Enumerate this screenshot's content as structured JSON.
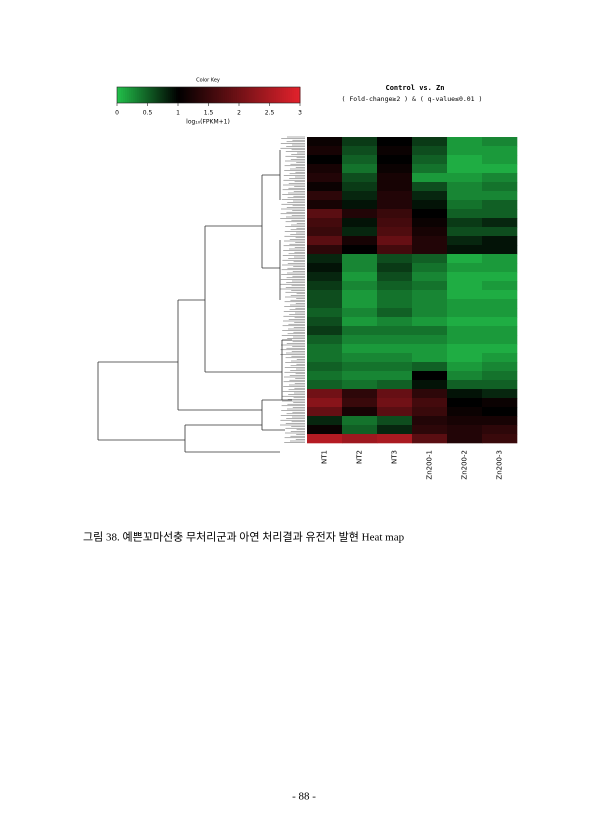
{
  "chart_data": {
    "type": "heatmap",
    "title": "Control vs. Zn",
    "subtitle": "( Fold-change≥2 ) & ( q-value≤0.01 )",
    "colorbar_title": "Color Key",
    "colorbar_label": "log₁₀(FPKM+1)",
    "colors": [
      "#22c04a",
      "#000000",
      "#e2222c"
    ],
    "clim": [
      0,
      3
    ],
    "color_mid": 1,
    "cticks": [
      0,
      0.5,
      1,
      1.5,
      2,
      2.5,
      3
    ],
    "categories": [
      "NT1",
      "NT2",
      "NT3",
      "Zn200-1",
      "Zn200-2",
      "Zn200-3"
    ],
    "values": [
      [
        1.1,
        0.7,
        1.0,
        0.7,
        0.2,
        0.3
      ],
      [
        1.2,
        0.6,
        1.1,
        0.6,
        0.2,
        0.2
      ],
      [
        1.0,
        0.5,
        1.0,
        0.5,
        0.1,
        0.2
      ],
      [
        1.2,
        0.4,
        1.1,
        0.4,
        0.1,
        0.1
      ],
      [
        1.3,
        0.6,
        1.2,
        0.2,
        0.2,
        0.3
      ],
      [
        1.1,
        0.7,
        1.2,
        0.6,
        0.3,
        0.4
      ],
      [
        1.4,
        0.8,
        1.3,
        0.8,
        0.3,
        0.3
      ],
      [
        1.2,
        0.9,
        1.3,
        0.9,
        0.4,
        0.5
      ],
      [
        1.8,
        1.3,
        1.5,
        1.0,
        0.5,
        0.5
      ],
      [
        1.6,
        0.9,
        1.6,
        1.1,
        0.7,
        0.8
      ],
      [
        1.5,
        0.8,
        1.7,
        1.2,
        0.6,
        0.6
      ],
      [
        1.8,
        1.2,
        1.9,
        1.3,
        0.8,
        0.9
      ],
      [
        1.4,
        1.0,
        1.6,
        1.3,
        0.9,
        0.9
      ],
      [
        0.8,
        0.3,
        0.6,
        0.5,
        0.1,
        0.2
      ],
      [
        0.9,
        0.3,
        0.7,
        0.4,
        0.2,
        0.2
      ],
      [
        0.8,
        0.2,
        0.6,
        0.3,
        0.1,
        0.1
      ],
      [
        0.7,
        0.3,
        0.5,
        0.4,
        0.1,
        0.2
      ],
      [
        0.6,
        0.2,
        0.4,
        0.3,
        0.1,
        0.1
      ],
      [
        0.6,
        0.2,
        0.4,
        0.3,
        0.2,
        0.2
      ],
      [
        0.5,
        0.3,
        0.5,
        0.3,
        0.2,
        0.2
      ],
      [
        0.6,
        0.2,
        0.3,
        0.2,
        0.1,
        0.1
      ],
      [
        0.7,
        0.4,
        0.4,
        0.4,
        0.2,
        0.2
      ],
      [
        0.5,
        0.3,
        0.3,
        0.3,
        0.2,
        0.2
      ],
      [
        0.4,
        0.2,
        0.2,
        0.2,
        0.1,
        0.1
      ],
      [
        0.4,
        0.3,
        0.3,
        0.2,
        0.1,
        0.2
      ],
      [
        0.5,
        0.4,
        0.4,
        0.5,
        0.2,
        0.3
      ],
      [
        0.4,
        0.3,
        0.3,
        1.0,
        0.3,
        0.4
      ],
      [
        0.5,
        0.4,
        0.5,
        0.9,
        0.5,
        0.5
      ],
      [
        2.0,
        1.4,
        1.9,
        1.4,
        0.9,
        0.8
      ],
      [
        2.2,
        1.5,
        2.0,
        1.6,
        1.0,
        1.1
      ],
      [
        1.9,
        1.2,
        1.8,
        1.5,
        1.1,
        1.0
      ],
      [
        0.8,
        0.4,
        0.6,
        1.3,
        1.2,
        1.2
      ],
      [
        1.1,
        0.5,
        0.8,
        1.4,
        1.3,
        1.4
      ],
      [
        2.6,
        2.4,
        2.5,
        1.8,
        1.3,
        1.5
      ]
    ]
  },
  "document": {
    "caption": "그림 38. 예쁜꼬마선충 무처리군과 아연 처리결과 유전자 발현 Heat map",
    "page_number": "- 88 -"
  }
}
